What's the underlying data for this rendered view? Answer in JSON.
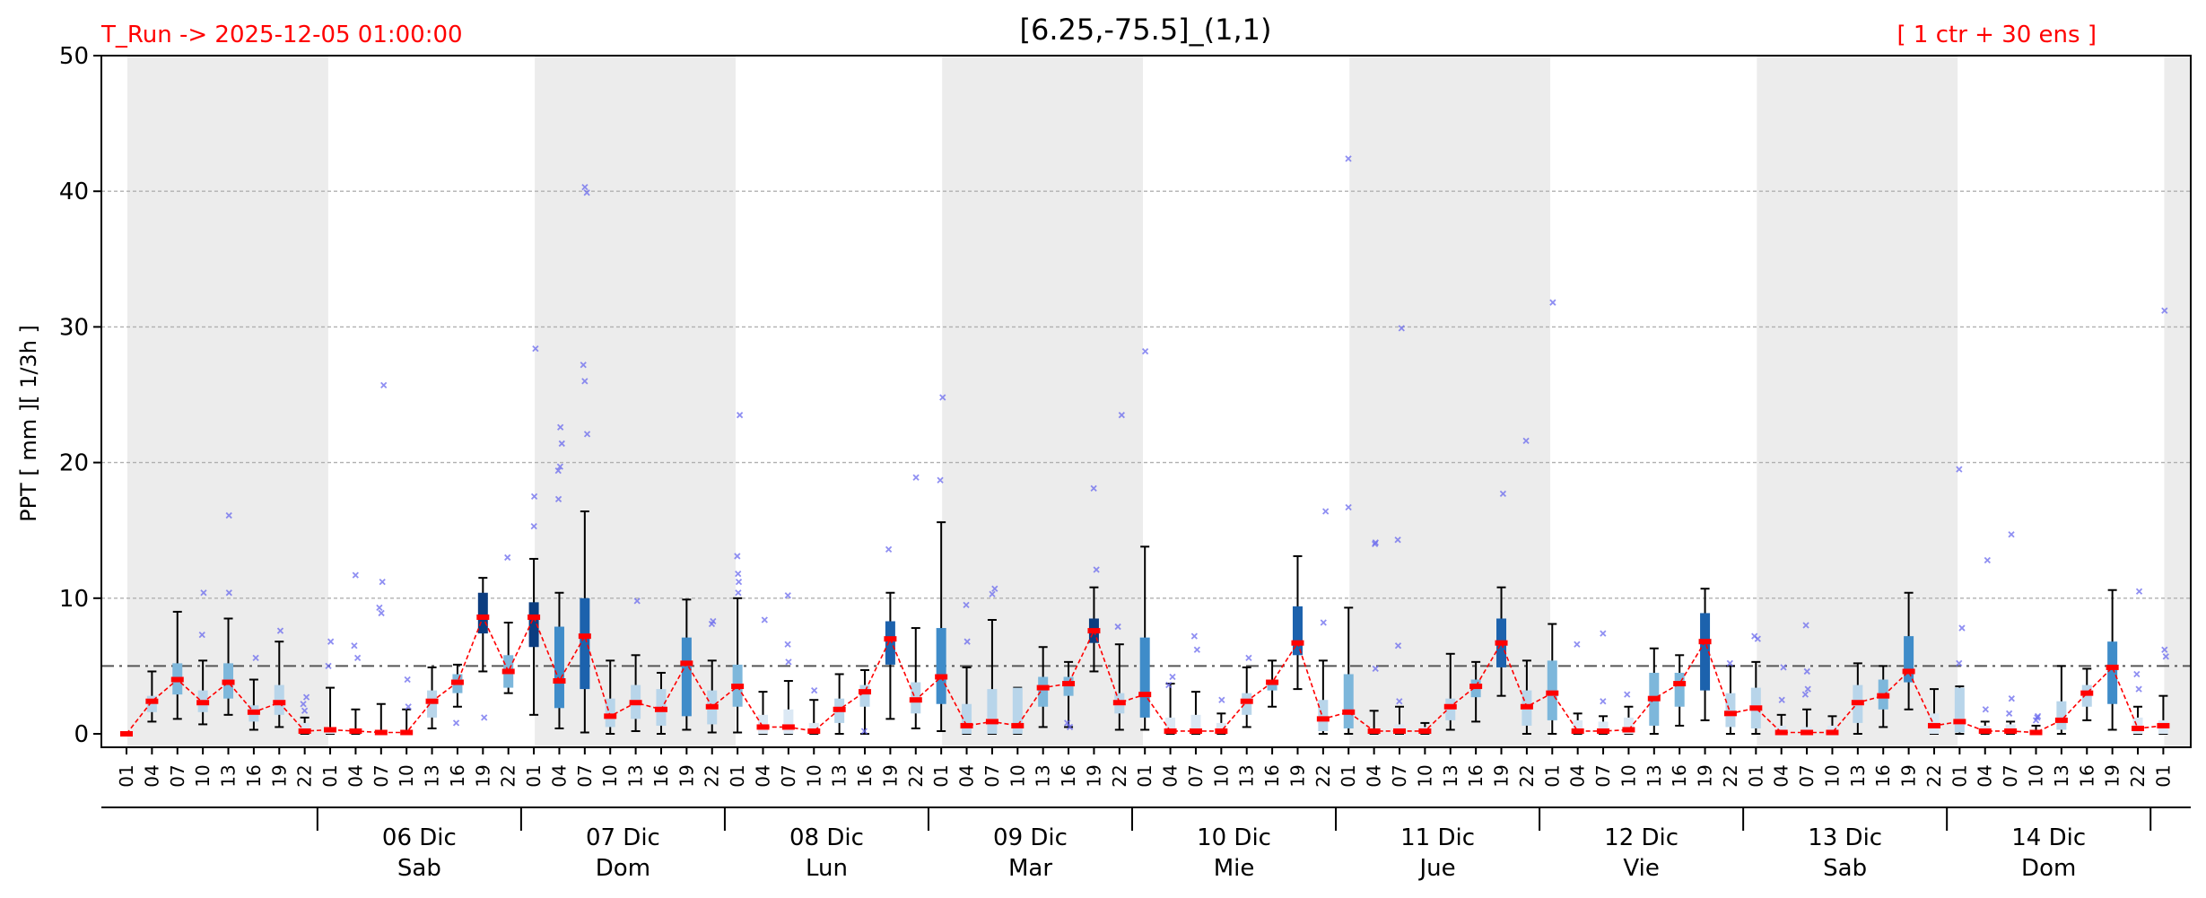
{
  "header": {
    "run_label": "T_Run -> 2025-12-05  01:00:00",
    "title": "[6.25,-75.5]_(1,1)",
    "members_label": "[ 1 ctr + 30 ens ]"
  },
  "chart_data": {
    "type": "box",
    "ylabel": "PPT  [ mm ][ 1/3h ]",
    "ylim": [
      0,
      50
    ],
    "yticks": [
      "0",
      "10",
      "20",
      "30",
      "40",
      "50"
    ],
    "grid": true,
    "threshold": 5,
    "hour_labels": [
      "01",
      "04",
      "07",
      "10",
      "13",
      "16",
      "19",
      "22",
      "01",
      "04",
      "07",
      "10",
      "13",
      "16",
      "19",
      "22",
      "01",
      "04",
      "07",
      "10",
      "13",
      "16",
      "19",
      "22",
      "01",
      "04",
      "07",
      "10",
      "13",
      "16",
      "19",
      "22",
      "01",
      "04",
      "07",
      "10",
      "13",
      "16",
      "19",
      "22",
      "01",
      "04",
      "07",
      "10",
      "13",
      "16",
      "19",
      "22",
      "01",
      "04",
      "07",
      "10",
      "13",
      "16",
      "19",
      "22",
      "01",
      "04",
      "07",
      "10",
      "13",
      "16",
      "19",
      "22",
      "01",
      "04",
      "07",
      "10",
      "13",
      "16",
      "19",
      "22",
      "01",
      "04",
      "07",
      "10",
      "13",
      "16",
      "19",
      "22",
      "01"
    ],
    "day_labels": [
      {
        "date": "06 Dic",
        "weekday": "Sab"
      },
      {
        "date": "07 Dic",
        "weekday": "Dom"
      },
      {
        "date": "08 Dic",
        "weekday": "Lun"
      },
      {
        "date": "09 Dic",
        "weekday": "Mar"
      },
      {
        "date": "10 Dic",
        "weekday": "Mie"
      },
      {
        "date": "11 Dic",
        "weekday": "Jue"
      },
      {
        "date": "12 Dic",
        "weekday": "Vie"
      },
      {
        "date": "13 Dic",
        "weekday": "Sab"
      },
      {
        "date": "14 Dic",
        "weekday": "Dom"
      }
    ],
    "series_median": [
      0,
      2.4,
      4.0,
      2.3,
      3.8,
      1.6,
      2.3,
      0.2,
      0.3,
      0.2,
      0.1,
      0.1,
      2.4,
      3.8,
      8.6,
      4.6,
      8.6,
      3.9,
      7.2,
      1.3,
      2.3,
      1.8,
      5.2,
      2.0,
      3.5,
      0.5,
      0.5,
      0.2,
      1.8,
      3.1,
      7.0,
      2.5,
      4.2,
      0.6,
      0.9,
      0.6,
      3.4,
      3.7,
      7.6,
      2.3,
      2.9,
      0.2,
      0.2,
      0.2,
      2.4,
      3.8,
      6.7,
      1.1,
      1.6,
      0.2,
      0.2,
      0.2,
      2.0,
      3.5,
      6.7,
      2.0,
      3.0,
      0.2,
      0.2,
      0.3,
      2.6,
      3.7,
      6.8,
      1.5,
      1.9,
      0.1,
      0.1,
      0.1,
      2.3,
      2.8,
      4.6,
      0.6,
      0.9,
      0.2,
      0.2,
      0.1,
      1.0,
      3.0,
      4.9,
      0.4,
      0.6
    ],
    "series_q1": [
      0,
      1.6,
      2.9,
      1.6,
      2.6,
      0.9,
      1.4,
      0,
      0,
      0,
      0,
      0,
      1.2,
      3.0,
      7.4,
      3.4,
      6.4,
      1.9,
      3.3,
      0.5,
      1.1,
      0.6,
      1.3,
      0.7,
      2.0,
      0,
      0,
      0,
      0.8,
      2.0,
      5.1,
      1.5,
      2.2,
      0,
      0,
      0,
      2.0,
      2.8,
      6.7,
      1.5,
      1.2,
      0,
      0,
      0,
      1.4,
      3.2,
      5.8,
      0.2,
      0.4,
      0,
      0,
      0,
      1.0,
      2.7,
      4.9,
      0.6,
      1.0,
      0,
      0,
      0,
      0.6,
      2.0,
      3.2,
      0.5,
      0.4,
      0,
      0,
      0,
      0.8,
      1.8,
      3.8,
      0,
      0.1,
      0,
      0,
      0,
      0.3,
      2.0,
      2.2,
      0,
      0
    ],
    "series_q3": [
      0,
      2.8,
      5.2,
      3.2,
      5.2,
      2.1,
      3.6,
      0.8,
      0.5,
      0.3,
      0.3,
      0.3,
      3.2,
      4.4,
      10.4,
      5.8,
      9.7,
      7.9,
      10.0,
      2.6,
      3.6,
      3.3,
      7.1,
      3.2,
      5.1,
      1.4,
      1.8,
      0.8,
      2.6,
      3.6,
      8.3,
      3.8,
      7.8,
      2.2,
      3.3,
      3.4,
      4.2,
      4.2,
      8.5,
      3.0,
      7.1,
      1.2,
      1.4,
      0.8,
      3.0,
      4.0,
      9.4,
      2.5,
      4.4,
      0.4,
      0.7,
      0.5,
      2.6,
      4.0,
      8.5,
      3.2,
      5.4,
      1.0,
      0.9,
      1.2,
      4.5,
      4.5,
      8.9,
      3.0,
      3.4,
      0.6,
      0.5,
      0.6,
      3.6,
      4.0,
      7.2,
      1.5,
      3.4,
      0.6,
      0.7,
      0.3,
      2.4,
      3.6,
      6.8,
      1.2,
      1.0
    ],
    "series_low": [
      0,
      0.9,
      1.1,
      0.7,
      1.4,
      0.3,
      0.5,
      0,
      0,
      0,
      0,
      0,
      0.4,
      2.0,
      4.6,
      3.0,
      1.4,
      0.4,
      0.1,
      0,
      0.2,
      0,
      0.3,
      0.1,
      0.1,
      0,
      0,
      0,
      0,
      0,
      1.1,
      0.4,
      0.2,
      0,
      0,
      0,
      0.5,
      0.5,
      4.6,
      0.3,
      0.3,
      0,
      0,
      0,
      0.5,
      2.0,
      3.3,
      0,
      0,
      0,
      0,
      0,
      0.3,
      0.9,
      2.8,
      0,
      0,
      0,
      0,
      0,
      0,
      0.6,
      1.0,
      0,
      0,
      0,
      0,
      0,
      0,
      0.5,
      1.8,
      0,
      0,
      0,
      0,
      0,
      0,
      1.0,
      0.3,
      0,
      0
    ],
    "series_high": [
      0,
      4.6,
      9.0,
      5.4,
      8.5,
      4.0,
      6.8,
      1.2,
      3.4,
      1.8,
      2.2,
      1.8,
      4.9,
      5.1,
      11.5,
      8.2,
      12.9,
      10.4,
      16.4,
      5.4,
      5.8,
      4.5,
      9.9,
      5.4,
      10.0,
      3.1,
      3.9,
      2.5,
      4.4,
      4.7,
      10.4,
      7.8,
      15.6,
      4.9,
      8.4,
      3.4,
      6.4,
      5.3,
      10.8,
      6.6,
      13.8,
      3.7,
      3.1,
      1.5,
      4.9,
      5.4,
      13.1,
      5.4,
      9.3,
      1.7,
      2.0,
      0.8,
      5.9,
      5.3,
      10.8,
      5.4,
      8.1,
      1.5,
      1.3,
      2.0,
      6.3,
      5.8,
      10.7,
      5.0,
      5.3,
      1.4,
      1.8,
      1.3,
      5.2,
      5.0,
      10.4,
      3.3,
      3.5,
      0.9,
      0.9,
      0.6,
      5.0,
      4.8,
      10.6,
      2.0,
      2.8
    ],
    "series_outliers": [
      [],
      [],
      [],
      [
        10.4,
        7.3
      ],
      [
        16.1,
        10.4
      ],
      [
        5.6
      ],
      [
        7.6
      ],
      [
        2.7,
        2.2,
        1.7
      ],
      [
        6.8,
        5.0
      ],
      [
        11.7,
        6.5,
        5.6
      ],
      [
        25.7,
        11.2,
        9.3,
        8.9
      ],
      [
        4.0,
        2.0
      ],
      [],
      [
        0.8
      ],
      [
        1.2
      ],
      [
        13.0
      ],
      [
        28.4,
        17.5,
        15.3
      ],
      [
        22.6,
        21.4,
        19.7,
        19.4,
        17.3
      ],
      [
        40.3,
        39.9,
        27.2,
        26.0,
        22.1
      ],
      [],
      [
        9.8
      ],
      [],
      [],
      [
        8.3,
        8.1
      ],
      [
        23.5,
        13.1,
        11.8,
        11.2,
        10.4
      ],
      [
        8.4
      ],
      [
        10.2,
        6.6,
        5.3
      ],
      [
        3.2
      ],
      [],
      [
        0.2
      ],
      [
        13.6
      ],
      [
        18.9
      ],
      [
        24.8,
        18.7
      ],
      [
        9.5,
        6.8
      ],
      [
        10.7,
        10.3
      ],
      [],
      [],
      [
        0.8,
        0.5
      ],
      [
        18.1,
        12.1
      ],
      [
        23.5,
        7.9
      ],
      [
        28.2
      ],
      [
        4.2,
        3.6
      ],
      [
        7.2,
        6.2
      ],
      [
        2.5
      ],
      [
        5.6
      ],
      [],
      [],
      [
        16.4,
        8.2
      ],
      [
        42.4,
        16.7
      ],
      [
        14.1,
        14.0,
        4.8
      ],
      [
        29.9,
        14.3,
        6.5,
        2.4
      ],
      [],
      [],
      [],
      [
        17.7
      ],
      [
        21.6
      ],
      [
        31.8
      ],
      [
        6.6
      ],
      [
        7.4,
        2.4
      ],
      [
        2.9
      ],
      [],
      [],
      [],
      [
        5.2
      ],
      [
        7.2,
        7.0
      ],
      [
        4.9,
        2.5
      ],
      [
        8.0,
        4.6,
        3.3,
        2.9
      ],
      [],
      [],
      [],
      [],
      [],
      [
        19.5,
        7.8,
        5.2
      ],
      [
        12.8,
        1.8
      ],
      [
        14.7,
        2.6,
        1.5
      ],
      [
        1.3,
        1.2,
        1.0
      ],
      [],
      [],
      [],
      [
        10.5,
        4.4,
        3.3
      ],
      [
        31.2,
        6.2,
        5.7
      ]
    ],
    "shaded_days": "alternate 8-step blocks (nighttime/day bands)"
  }
}
